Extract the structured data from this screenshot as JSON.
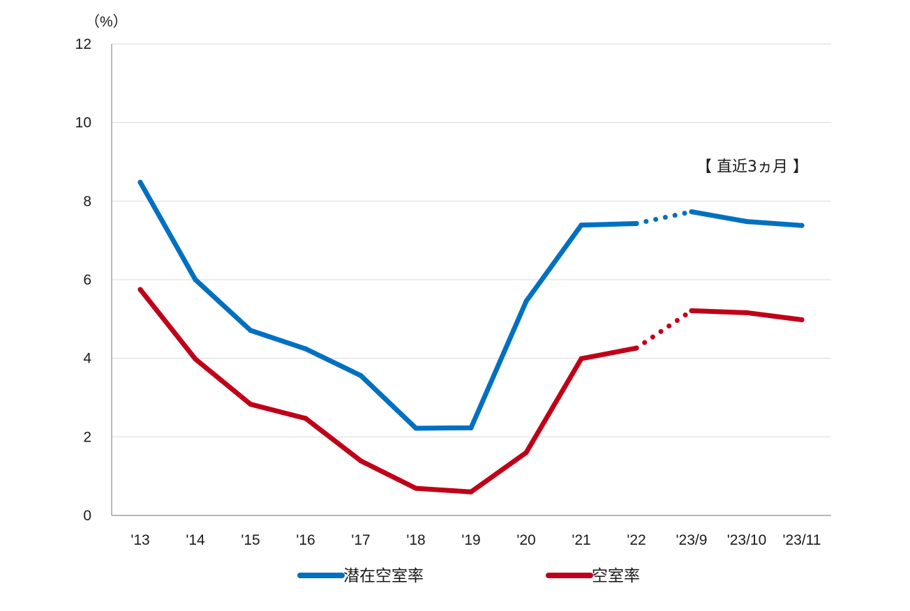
{
  "chart_data": {
    "type": "line",
    "unit_label": "（%）",
    "annotation": "【 直近3ヵ月 】",
    "categories": [
      "'13",
      "'14",
      "'15",
      "'16",
      "'17",
      "'18",
      "'19",
      "'20",
      "'21",
      "'22",
      "'23/9",
      "'23/10",
      "'23/11"
    ],
    "ylim": [
      0,
      12
    ],
    "yticks": [
      "0",
      "2",
      "4",
      "6",
      "8",
      "10",
      "12"
    ],
    "grid": true,
    "legend_position": "bottom",
    "series": [
      {
        "name": "潜在空室率",
        "color": "#0070C0",
        "values": [
          8.48,
          6.0,
          4.71,
          4.24,
          3.56,
          2.22,
          2.23,
          5.45,
          7.39,
          7.43,
          7.73,
          7.48,
          7.38
        ]
      },
      {
        "name": "空室率",
        "color": "#C00018",
        "values": [
          5.75,
          3.98,
          2.83,
          2.47,
          1.39,
          0.69,
          0.6,
          1.6,
          3.99,
          4.26,
          5.21,
          5.16,
          4.98
        ]
      }
    ]
  }
}
